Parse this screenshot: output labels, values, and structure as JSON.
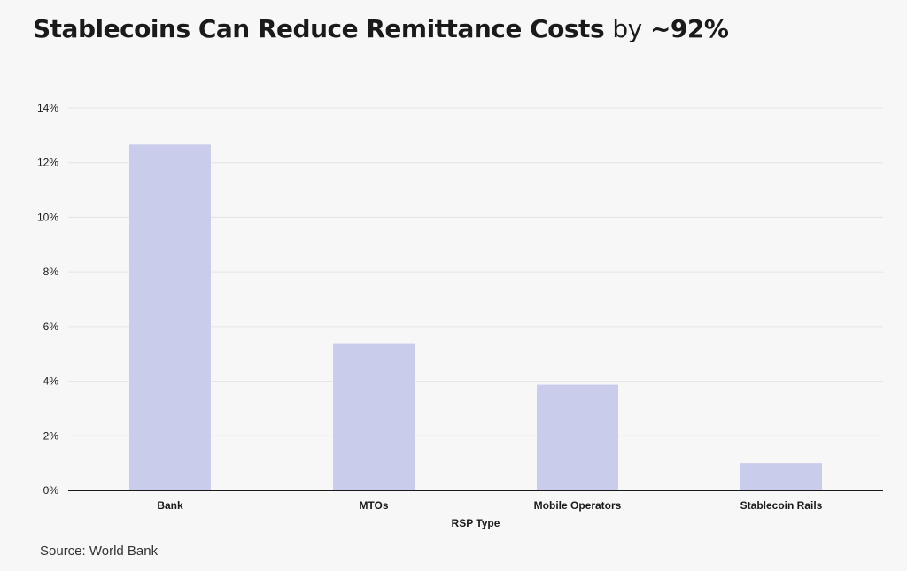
{
  "title": {
    "main": "Stablecoins Can Reduce Remittance Costs",
    "connector": "by",
    "highlight": "~92%"
  },
  "source": "Source: World Bank",
  "colors": {
    "bar": "#c9cceb",
    "grid": "#e4e4e4",
    "axis": "#1a1a1a",
    "background": "#f7f7f7"
  },
  "chart_data": {
    "type": "bar",
    "categories": [
      "Bank",
      "MTOs",
      "Mobile Operators",
      "Stablecoin Rails"
    ],
    "values": [
      12.66,
      5.36,
      3.87,
      1.0
    ],
    "xlabel": "RSP Type",
    "ylabel": "",
    "ylim": [
      0,
      14
    ],
    "yticks": [
      0,
      2,
      4,
      6,
      8,
      10,
      12,
      14
    ],
    "ytick_labels": [
      "0%",
      "2%",
      "4%",
      "6%",
      "8%",
      "10%",
      "12%",
      "14%"
    ],
    "grid": true,
    "legend": "none"
  }
}
